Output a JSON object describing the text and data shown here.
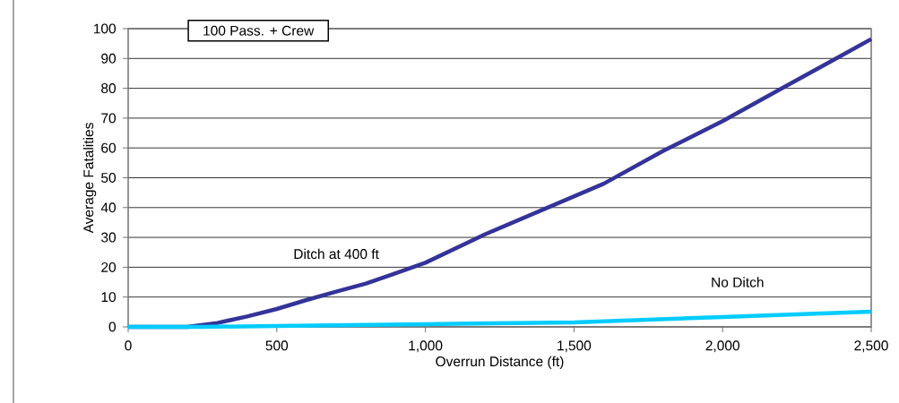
{
  "chart_data": {
    "type": "line",
    "title": "100 Pass. + Crew",
    "xlabel": "Overrun Distance (ft)",
    "ylabel": "Average Fatalities",
    "xlim": [
      0,
      2500
    ],
    "ylim": [
      0,
      100
    ],
    "xticks": [
      0,
      500,
      {
        "value": 1000,
        "label": "1,000"
      },
      {
        "value": 1500,
        "label": "1,500"
      },
      {
        "value": 2000,
        "label": "2,000"
      },
      {
        "value": 2500,
        "label": "2,500"
      }
    ],
    "yticks": [
      0,
      10,
      20,
      30,
      40,
      50,
      60,
      70,
      80,
      90,
      100
    ],
    "grid": "y",
    "legend": false,
    "marker": "none",
    "line_style": "solid",
    "series": [
      {
        "name": "Ditch at 400 ft",
        "color": "#333399",
        "x": [
          0,
          200,
          300,
          400,
          500,
          600,
          700,
          800,
          900,
          1000,
          1200,
          1400,
          1600,
          1800,
          2000,
          2200,
          2400,
          2500
        ],
        "values": [
          0,
          0,
          1.3,
          3.5,
          6,
          9,
          11.8,
          14.5,
          18,
          21.5,
          31,
          39.5,
          48,
          59,
          69,
          80,
          91,
          96.5
        ]
      },
      {
        "name": "No Ditch",
        "color": "#00ccff",
        "x": [
          0,
          250,
          500,
          1000,
          1500,
          2000,
          2500
        ],
        "values": [
          0,
          0,
          0.3,
          0.9,
          1.5,
          3.3,
          5.1
        ]
      }
    ]
  }
}
